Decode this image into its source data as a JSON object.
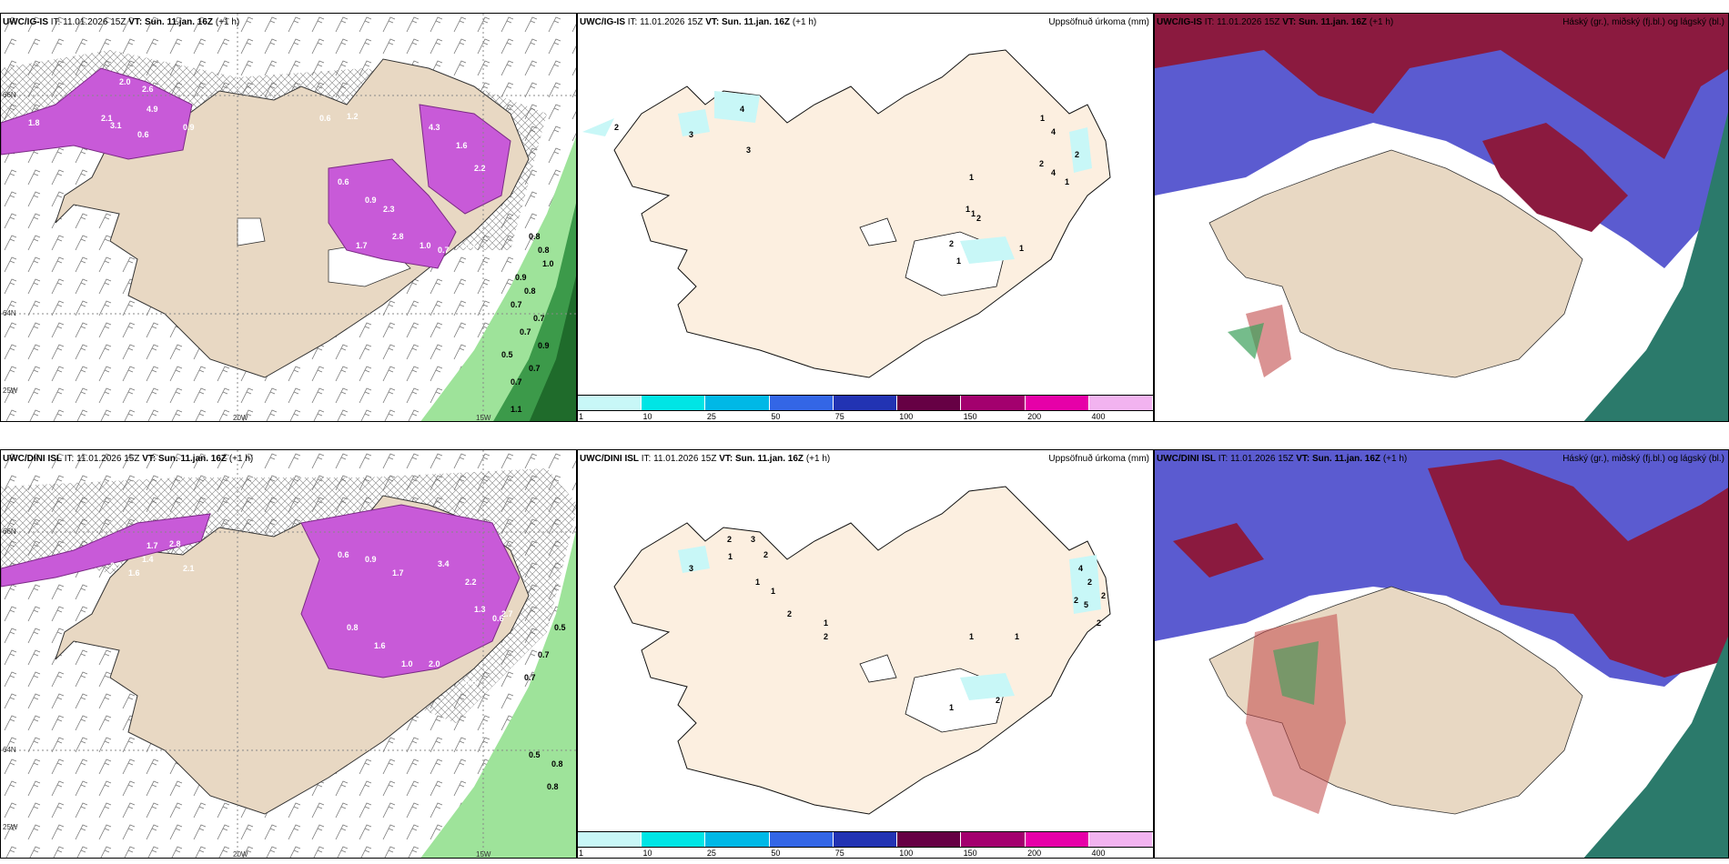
{
  "panels_row1": {
    "p1": {
      "source": "UWC/IG-IS",
      "it_label": "IT:",
      "it_value": "11.01.2026 15Z",
      "vt_label": "VT: Sun. 11.jan. 16Z",
      "lead": "(+1 h)"
    },
    "p2": {
      "source": "UWC/IG-IS",
      "it_label": "IT:",
      "it_value": "11.01.2026 15Z",
      "vt_label": "VT: Sun. 11.jan. 16Z",
      "lead": "(+1 h)",
      "right": "Uppsöfnuð úrkoma (mm)"
    },
    "p3": {
      "source": "UWC/IG-IS",
      "it_label": "IT:",
      "it_value": "11.01.2026 15Z",
      "vt_label": "VT: Sun. 11.jan. 16Z",
      "lead": "(+1 h)",
      "right": "Háský (gr.), miðský (fj.bl.) og lágský (bl.)"
    }
  },
  "panels_row2": {
    "p1": {
      "source": "UWC/DINI ISL",
      "it_label": "IT:",
      "it_value": "11.01.2026 15Z",
      "vt_label": "VT: Sun. 11.jan. 16Z",
      "lead": "(+1 h)"
    },
    "p2": {
      "source": "UWC/DINI ISL",
      "it_label": "IT:",
      "it_value": "11.01.2026 15Z",
      "vt_label": "VT: Sun. 11.jan. 16Z",
      "lead": "(+1 h)",
      "right": "Uppsöfnuð úrkoma (mm)"
    },
    "p3": {
      "source": "UWC/DINI ISL",
      "it_label": "IT:",
      "it_value": "11.01.2026 15Z",
      "vt_label": "VT: Sun. 11.jan. 16Z",
      "lead": "(+1 h)",
      "right": "Háský (gr.), miðský (fj.bl.) og lágský (bl.)"
    }
  },
  "axes": {
    "lon1": "20W",
    "lon2": "15W",
    "lat1": "66N",
    "lat2": "64N",
    "lat3": "25W"
  },
  "colorbar": {
    "colors": [
      "#c8f7f7",
      "#00e5e5",
      "#00b8e6",
      "#3366e6",
      "#2233b3",
      "#660044",
      "#a3006e",
      "#e600a8",
      "#f2b3f0"
    ],
    "ticks": [
      "1",
      "10",
      "25",
      "50",
      "75",
      "100",
      "150",
      "200",
      "400"
    ]
  },
  "precip_labels_row1": [
    "2",
    "3",
    "4",
    "3",
    "1",
    "4",
    "2",
    "4",
    "2",
    "1",
    "1",
    "1",
    "1",
    "2",
    "1",
    "2",
    "1"
  ],
  "precip_labels_row2": [
    "3",
    "2",
    "3",
    "1",
    "2",
    "1",
    "1",
    "2",
    "1",
    "2",
    "4",
    "2",
    "2",
    "5",
    "2",
    "2",
    "1",
    "1",
    "1",
    "2"
  ],
  "snow_labels_row1": [
    "2.0",
    "2.6",
    "4.9",
    "3.1",
    "0.6",
    "1.8",
    "2.1",
    "0.9",
    "0.6",
    "1.2",
    "4.3",
    "1.6",
    "2.2",
    "0.6",
    "0.9",
    "2.3",
    "2.8",
    "1.7",
    "1.0",
    "0.7",
    "0.7"
  ],
  "rain_labels_row1": [
    "0.8",
    "0.8",
    "1.0",
    "0.9",
    "0.8",
    "0.7",
    "0.7",
    "0.7",
    "0.9",
    "0.5",
    "0.7",
    "0.7",
    "1.1"
  ],
  "snow_labels_row2": [
    "1.7",
    "2.8",
    "1.4",
    "2.7",
    "2.1",
    "1.6",
    "0.6",
    "0.9",
    "1.7",
    "3.4",
    "2.2",
    "1.3",
    "2.7",
    "0.8",
    "1.6",
    "1.0",
    "2.0",
    "0.5",
    "0.6"
  ],
  "rain_labels_row2": [
    "0.5",
    "0.7",
    "0.7",
    "0.5",
    "0.8",
    "0.8"
  ]
}
